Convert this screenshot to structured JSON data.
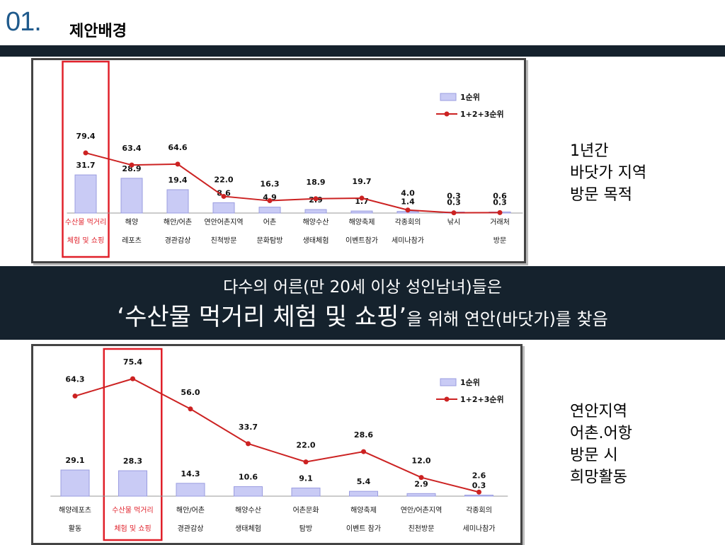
{
  "header": {
    "number": "01.",
    "subtitle": "제안배경"
  },
  "note1": [
    "1년간",
    "바닷가 지역",
    "방문 목적"
  ],
  "note2": [
    "연안지역",
    "어촌.어항",
    "방문 시",
    "희망활동"
  ],
  "banner": {
    "line1": "다수의 어른(만 20세 이상 성인남녀)들은",
    "line2_emphasis": "‘수산물 먹거리 체험 및 쇼핑’",
    "line2_rest": "을 위해 연안(바닷가)를  찾음"
  },
  "colors": {
    "bar": "#c9cbf5",
    "bar_stroke": "#9a9ce0",
    "line": "#cc2222",
    "highlight": "#e0202a",
    "dark": "#15222d"
  },
  "chart_data": [
    {
      "type": "bar",
      "categories": [
        [
          "수산물 먹거리",
          "체험 및 쇼핑"
        ],
        [
          "해양",
          "레포츠"
        ],
        [
          "해안/어촌",
          "경관감상"
        ],
        [
          "연안어촌지역",
          "친척방문"
        ],
        [
          "어촌",
          "문화탐방"
        ],
        [
          "해양수산",
          "생태체험"
        ],
        [
          "해양축제",
          "이벤트참가"
        ],
        [
          "각종회의",
          "세미나참가"
        ],
        [
          "낚시",
          ""
        ],
        [
          "거래처",
          "방문"
        ]
      ],
      "series": [
        {
          "name": "1순위",
          "kind": "bar",
          "values": [
            31.7,
            28.9,
            19.4,
            8.6,
            4.9,
            2.9,
            1.7,
            1.4,
            0.3,
            0.3
          ]
        },
        {
          "name": "1+2+3순위",
          "kind": "line",
          "values": [
            79.4,
            63.4,
            64.6,
            22.0,
            16.3,
            18.9,
            19.7,
            4.0,
            0.3,
            0.6
          ]
        }
      ],
      "bar_labels": [
        "31.7",
        "28.9",
        "19.4",
        "8.6",
        "4.9",
        "2.9",
        "1.7",
        "1.4",
        "0.3",
        "0.3"
      ],
      "line_labels": [
        "79.4",
        "63.4",
        "64.6",
        "22.0",
        "16.3",
        "18.9",
        "19.7",
        "4.0",
        "0.3",
        "0.6"
      ],
      "highlight_index": 0,
      "legend": "top-right"
    },
    {
      "type": "bar",
      "categories": [
        [
          "해양레포츠",
          "활동"
        ],
        [
          "수산물 먹거리",
          "체험 및 쇼핑"
        ],
        [
          "해안/어촌",
          "경관감상"
        ],
        [
          "해양수산",
          "생태체험"
        ],
        [
          "어촌문화",
          "탐방"
        ],
        [
          "해양축제",
          "이벤트 참가"
        ],
        [
          "연안/어촌지역",
          "친천방문"
        ],
        [
          "각종회의",
          "세미나참가"
        ]
      ],
      "series": [
        {
          "name": "1순위",
          "kind": "bar",
          "values": [
            29.1,
            28.3,
            14.3,
            10.6,
            9.1,
            5.4,
            2.9,
            0.3
          ]
        },
        {
          "name": "1+2+3순위",
          "kind": "line",
          "values": [
            64.3,
            75.4,
            56.0,
            33.7,
            22.0,
            28.6,
            12.0,
            2.6
          ]
        }
      ],
      "bar_labels": [
        "29.1",
        "28.3",
        "14.3",
        "10.6",
        "9.1",
        "5.4",
        "2.9",
        "0.3"
      ],
      "line_labels": [
        "64.3",
        "75.4",
        "56.0",
        "33.7",
        "22.0",
        "28.6",
        "12.0",
        "2.6"
      ],
      "highlight_index": 1,
      "legend": "top-right"
    }
  ]
}
